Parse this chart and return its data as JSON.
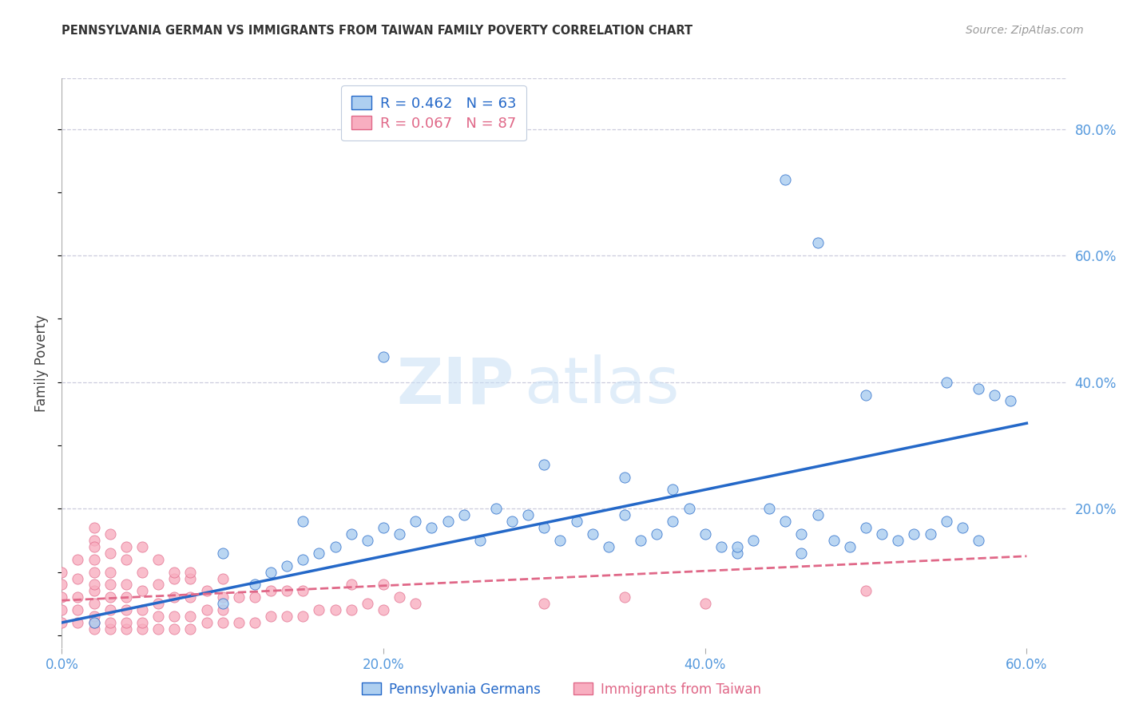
{
  "title": "PENNSYLVANIA GERMAN VS IMMIGRANTS FROM TAIWAN FAMILY POVERTY CORRELATION CHART",
  "source": "Source: ZipAtlas.com",
  "ylabel": "Family Poverty",
  "xlim": [
    0.0,
    0.625
  ],
  "ylim": [
    -0.02,
    0.88
  ],
  "xtick_labels": [
    "0.0%",
    "20.0%",
    "40.0%",
    "60.0%"
  ],
  "xtick_values": [
    0.0,
    0.2,
    0.4,
    0.6
  ],
  "ytick_labels": [
    "20.0%",
    "40.0%",
    "60.0%",
    "80.0%"
  ],
  "ytick_values": [
    0.2,
    0.4,
    0.6,
    0.8
  ],
  "blue_R": 0.462,
  "blue_N": 63,
  "pink_R": 0.067,
  "pink_N": 87,
  "blue_color": "#aecff0",
  "blue_line_color": "#2468c8",
  "pink_color": "#f8aec0",
  "pink_line_color": "#e06888",
  "watermark_zip": "ZIP",
  "watermark_atlas": "atlas",
  "blue_scatter_x": [
    0.02,
    0.1,
    0.1,
    0.12,
    0.13,
    0.14,
    0.15,
    0.15,
    0.16,
    0.17,
    0.18,
    0.19,
    0.2,
    0.21,
    0.22,
    0.23,
    0.24,
    0.25,
    0.26,
    0.27,
    0.28,
    0.29,
    0.3,
    0.31,
    0.32,
    0.33,
    0.34,
    0.35,
    0.36,
    0.37,
    0.38,
    0.39,
    0.4,
    0.41,
    0.42,
    0.43,
    0.44,
    0.45,
    0.46,
    0.47,
    0.48,
    0.49,
    0.5,
    0.51,
    0.52,
    0.53,
    0.54,
    0.55,
    0.56,
    0.57,
    0.45,
    0.47,
    0.2,
    0.5,
    0.55,
    0.57,
    0.58,
    0.59,
    0.3,
    0.35,
    0.38,
    0.42,
    0.46
  ],
  "blue_scatter_y": [
    0.02,
    0.05,
    0.13,
    0.08,
    0.1,
    0.11,
    0.12,
    0.18,
    0.13,
    0.14,
    0.16,
    0.15,
    0.17,
    0.16,
    0.18,
    0.17,
    0.18,
    0.19,
    0.15,
    0.2,
    0.18,
    0.19,
    0.17,
    0.15,
    0.18,
    0.16,
    0.14,
    0.19,
    0.15,
    0.16,
    0.18,
    0.2,
    0.16,
    0.14,
    0.13,
    0.15,
    0.2,
    0.18,
    0.16,
    0.19,
    0.15,
    0.14,
    0.17,
    0.16,
    0.15,
    0.16,
    0.16,
    0.18,
    0.17,
    0.15,
    0.72,
    0.62,
    0.44,
    0.38,
    0.4,
    0.39,
    0.38,
    0.37,
    0.27,
    0.25,
    0.23,
    0.14,
    0.13
  ],
  "pink_scatter_x": [
    0.0,
    0.0,
    0.0,
    0.0,
    0.0,
    0.01,
    0.01,
    0.01,
    0.01,
    0.01,
    0.02,
    0.02,
    0.02,
    0.02,
    0.02,
    0.02,
    0.02,
    0.02,
    0.02,
    0.02,
    0.03,
    0.03,
    0.03,
    0.03,
    0.03,
    0.03,
    0.03,
    0.04,
    0.04,
    0.04,
    0.04,
    0.04,
    0.04,
    0.05,
    0.05,
    0.05,
    0.05,
    0.05,
    0.06,
    0.06,
    0.06,
    0.06,
    0.07,
    0.07,
    0.07,
    0.07,
    0.08,
    0.08,
    0.08,
    0.08,
    0.09,
    0.09,
    0.09,
    0.1,
    0.1,
    0.1,
    0.1,
    0.11,
    0.11,
    0.12,
    0.12,
    0.13,
    0.13,
    0.14,
    0.14,
    0.15,
    0.15,
    0.16,
    0.17,
    0.18,
    0.18,
    0.19,
    0.2,
    0.2,
    0.21,
    0.22,
    0.3,
    0.35,
    0.4,
    0.5,
    0.02,
    0.03,
    0.04,
    0.05,
    0.06,
    0.07,
    0.08
  ],
  "pink_scatter_y": [
    0.02,
    0.04,
    0.06,
    0.08,
    0.1,
    0.02,
    0.04,
    0.06,
    0.09,
    0.12,
    0.01,
    0.02,
    0.03,
    0.05,
    0.07,
    0.08,
    0.1,
    0.12,
    0.15,
    0.17,
    0.01,
    0.02,
    0.04,
    0.06,
    0.08,
    0.1,
    0.13,
    0.01,
    0.02,
    0.04,
    0.06,
    0.08,
    0.12,
    0.01,
    0.02,
    0.04,
    0.07,
    0.1,
    0.01,
    0.03,
    0.05,
    0.08,
    0.01,
    0.03,
    0.06,
    0.09,
    0.01,
    0.03,
    0.06,
    0.09,
    0.02,
    0.04,
    0.07,
    0.02,
    0.04,
    0.06,
    0.09,
    0.02,
    0.06,
    0.02,
    0.06,
    0.03,
    0.07,
    0.03,
    0.07,
    0.03,
    0.07,
    0.04,
    0.04,
    0.04,
    0.08,
    0.05,
    0.04,
    0.08,
    0.06,
    0.05,
    0.05,
    0.06,
    0.05,
    0.07,
    0.14,
    0.16,
    0.14,
    0.14,
    0.12,
    0.1,
    0.1
  ],
  "blue_line_start_x": 0.0,
  "blue_line_end_x": 0.6,
  "blue_line_start_y": 0.02,
  "blue_line_end_y": 0.335,
  "pink_line_start_x": 0.0,
  "pink_line_end_x": 0.6,
  "pink_line_start_y": 0.055,
  "pink_line_end_y": 0.125
}
